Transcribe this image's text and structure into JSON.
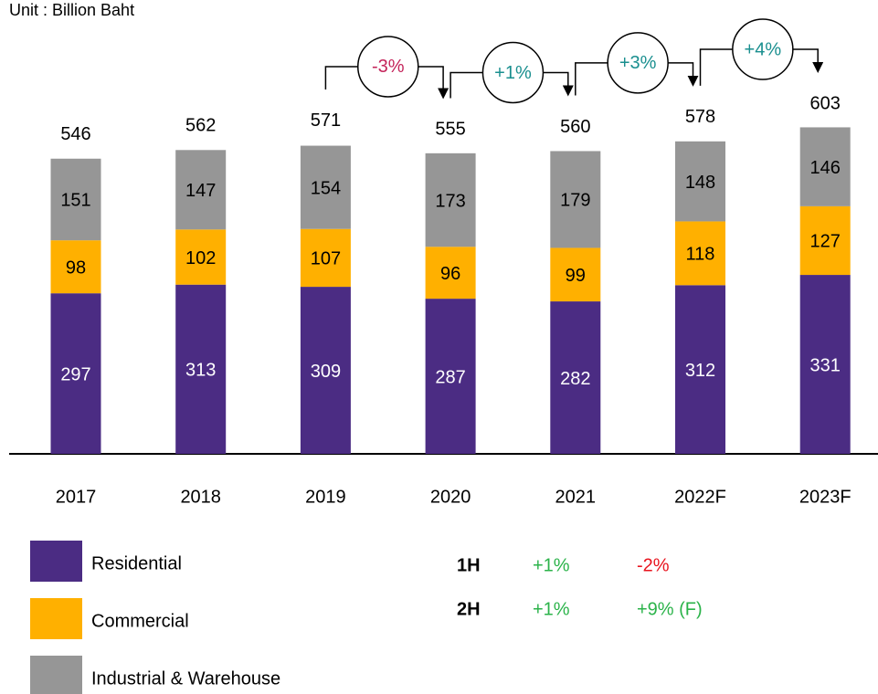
{
  "chart_data": {
    "type": "stacked_bar",
    "subtitle": "Unit : Billion Baht",
    "categories": [
      "2017",
      "2018",
      "2019",
      "2020",
      "2021",
      "2022F",
      "2023F"
    ],
    "series": [
      {
        "name": "Residential",
        "color": "#4b2c83",
        "label_color": "#ffffff",
        "values": [
          297,
          313,
          309,
          287,
          282,
          312,
          331
        ]
      },
      {
        "name": "Commercial",
        "color": "#ffb000",
        "label_color": "#000000",
        "values": [
          98,
          102,
          107,
          96,
          99,
          118,
          127
        ]
      },
      {
        "name": "Industrial & Warehouse",
        "color": "#969696",
        "label_color": "#000000",
        "values": [
          151,
          147,
          154,
          173,
          179,
          148,
          146
        ]
      }
    ],
    "totals": [
      546,
      562,
      571,
      555,
      560,
      578,
      603
    ],
    "growth": [
      {
        "label": "-3%",
        "color": "#c4245a"
      },
      {
        "label": "+1%",
        "color": "#1a8f8f"
      },
      {
        "label": "+3%",
        "color": "#1a8f8f"
      },
      {
        "label": "+4%",
        "color": "#1a8f8f"
      }
    ],
    "half_table": {
      "rows": [
        {
          "label": "1H",
          "cells": [
            {
              "text": "+1%",
              "color": "#2bb34a"
            },
            {
              "text": "-2%",
              "color": "#e8141e"
            }
          ]
        },
        {
          "label": "2H",
          "cells": [
            {
              "text": "+1%",
              "color": "#2bb34a"
            },
            {
              "text": "+9% (F)",
              "color": "#2bb34a"
            }
          ]
        }
      ]
    }
  }
}
